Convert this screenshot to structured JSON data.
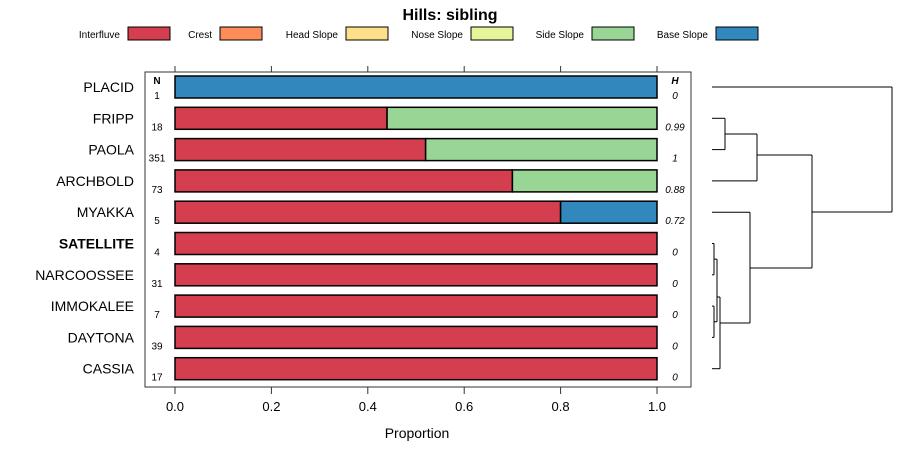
{
  "chart_data": {
    "type": "bar",
    "orientation": "horizontal",
    "stacked": true,
    "title": "Hills: sibling",
    "xlabel": "Proportion",
    "ylabel": "",
    "xlim": [
      0,
      1
    ],
    "xticks": [
      "0.0",
      "0.2",
      "0.4",
      "0.6",
      "0.8",
      "1.0"
    ],
    "xtick_values": [
      0,
      0.2,
      0.4,
      0.6,
      0.8,
      1.0
    ],
    "n_header": "N",
    "h_header": "H",
    "legend": [
      {
        "name": "Interfluve",
        "color": "#d53e4f"
      },
      {
        "name": "Crest",
        "color": "#fc8d59"
      },
      {
        "name": "Head Slope",
        "color": "#fee08b"
      },
      {
        "name": "Nose Slope",
        "color": "#e6f598"
      },
      {
        "name": "Side Slope",
        "color": "#99d594"
      },
      {
        "name": "Base Slope",
        "color": "#3288bd"
      }
    ],
    "categories": [
      "PLACID",
      "FRIPP",
      "PAOLA",
      "ARCHBOLD",
      "MYAKKA",
      "SATELLITE",
      "NARCOOSSEE",
      "IMMOKALEE",
      "DAYTONA",
      "CASSIA"
    ],
    "highlighted": "SATELLITE",
    "n": [
      "1",
      "18",
      "351",
      "73",
      "5",
      "4",
      "31",
      "7",
      "39",
      "17"
    ],
    "h": [
      "0",
      "0.99",
      "1",
      "0.88",
      "0.72",
      "0",
      "0",
      "0",
      "0",
      "0"
    ],
    "series": [
      {
        "name": "Interfluve",
        "values": [
          0,
          0.44,
          0.52,
          0.7,
          0.8,
          1,
          1,
          1,
          1,
          1
        ]
      },
      {
        "name": "Crest",
        "values": [
          0,
          0,
          0,
          0,
          0,
          0,
          0,
          0,
          0,
          0
        ]
      },
      {
        "name": "Head Slope",
        "values": [
          0,
          0,
          0,
          0,
          0,
          0,
          0,
          0,
          0,
          0
        ]
      },
      {
        "name": "Nose Slope",
        "values": [
          0,
          0,
          0,
          0,
          0,
          0,
          0,
          0,
          0,
          0
        ]
      },
      {
        "name": "Side Slope",
        "values": [
          0,
          0.56,
          0.48,
          0.3,
          0,
          0,
          0,
          0,
          0,
          0
        ]
      },
      {
        "name": "Base Slope",
        "values": [
          1,
          0,
          0,
          0,
          0.2,
          0,
          0,
          0,
          0,
          0
        ]
      }
    ],
    "dendrogram": {
      "description_free": true,
      "merges": [
        {
          "left": "FRIPP",
          "right": "PAOLA",
          "height": 0.1
        },
        {
          "left": "FRIPP+PAOLA",
          "right": "ARCHBOLD",
          "height": 0.25
        },
        {
          "left": "SATELLITE",
          "right": "NARCOOSSEE",
          "height": 0.0
        },
        {
          "left": "IMMOKALEE",
          "right": "DAYTONA",
          "height": 0.0
        },
        {
          "left": "SATELLITE+NARCOOSSEE",
          "right": "IMMOKALEE+DAYTONA",
          "height": 0.01
        },
        {
          "left": "SAT-group",
          "right": "CASSIA",
          "height": 0.02
        },
        {
          "left": "MYAKKA",
          "right": "SAT-group+CASSIA",
          "height": 0.21
        },
        {
          "left": "FRIPP-group",
          "right": "MYAKKA-group",
          "height": 0.54
        },
        {
          "left": "PLACID",
          "right": "rest",
          "height": 1.0
        }
      ]
    }
  }
}
